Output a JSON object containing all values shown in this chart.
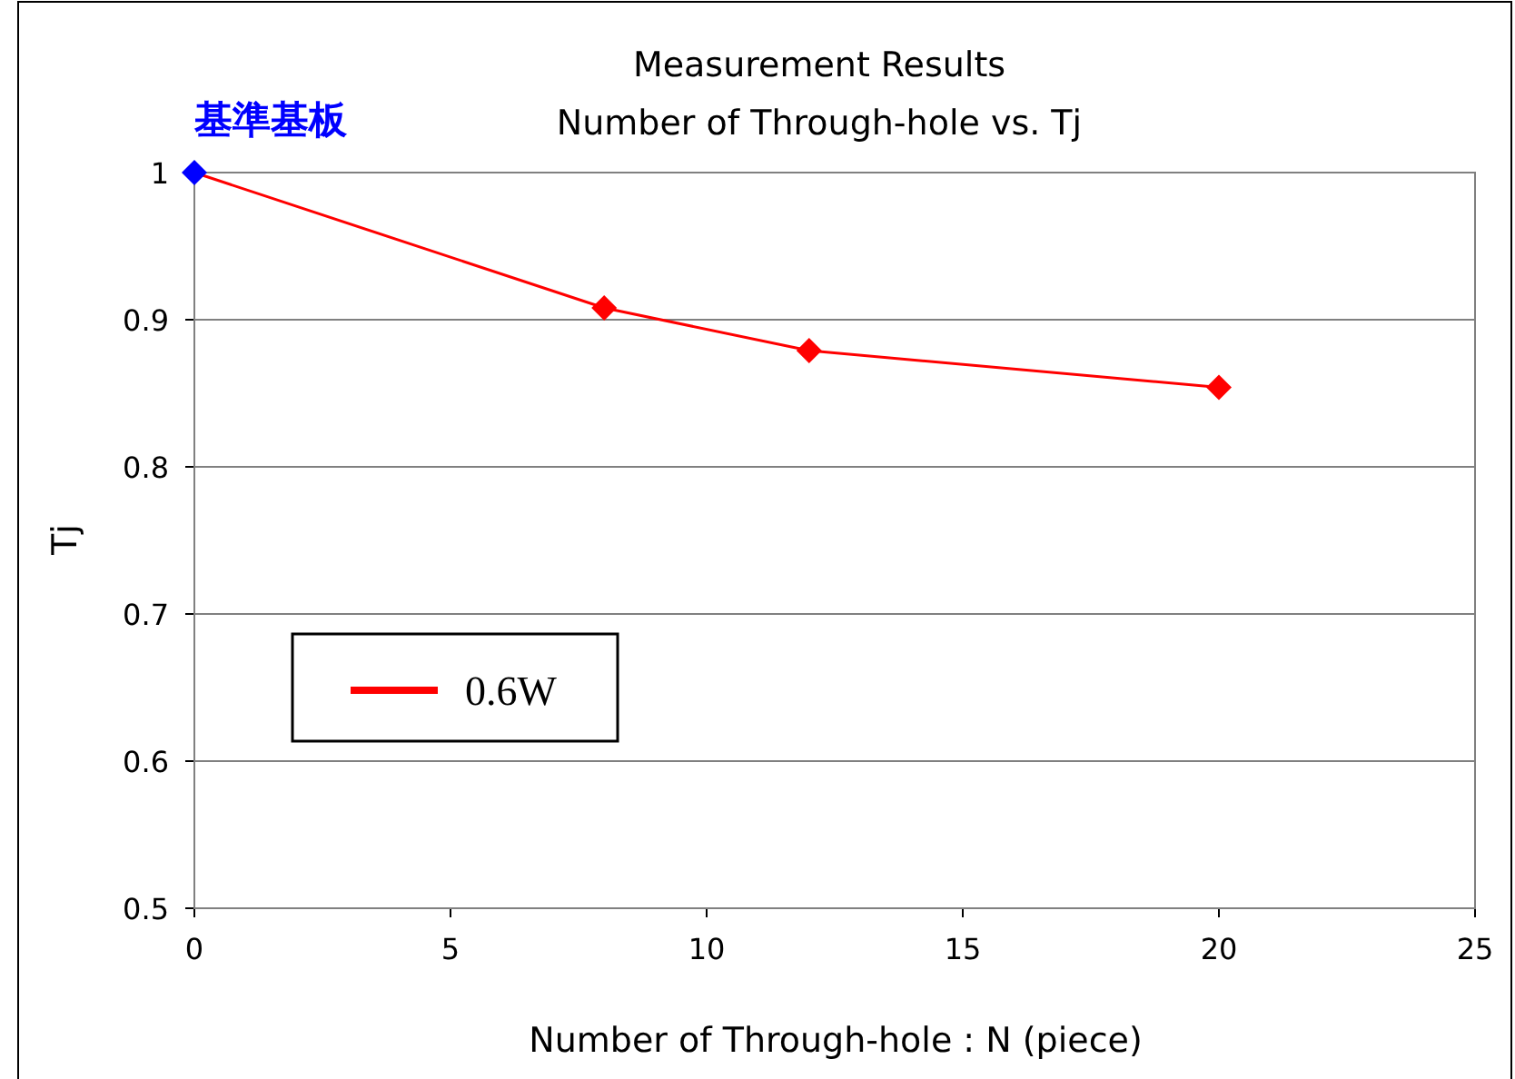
{
  "chart_data": {
    "type": "line",
    "title": "Measurement Results",
    "subtitle": "Number of Through-hole vs. Tj",
    "xlabel": "Number of Through-hole : N (piece)",
    "ylabel": "Tj",
    "x": [
      0,
      8,
      12,
      20
    ],
    "series": [
      {
        "name": "0.6W",
        "color": "#ff0000",
        "colors": [
          "#0000ff",
          "#ff0000",
          "#ff0000",
          "#ff0000"
        ],
        "values": [
          1,
          0.908,
          0.879,
          0.854
        ]
      }
    ],
    "xlim": [
      0,
      25
    ],
    "xticks": [
      0,
      5,
      10,
      15,
      20,
      25
    ],
    "ylim": [
      0.5,
      1
    ],
    "yticks": [
      0.5,
      0.6,
      0.7,
      0.8,
      0.9,
      1
    ],
    "annotations": [
      {
        "text": "基準基板",
        "x": 0,
        "y": 1
      }
    ],
    "grid": "y",
    "legend": "left",
    "marker": "diamond",
    "line_style": "solid"
  }
}
